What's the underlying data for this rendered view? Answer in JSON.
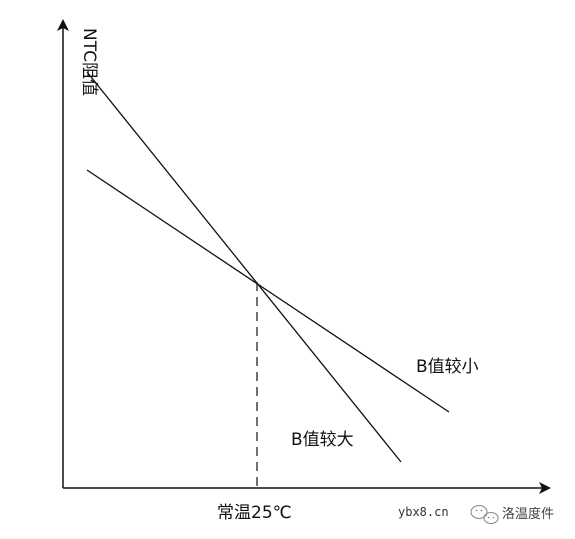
{
  "diagram": {
    "y_axis_label": "NTC阻值",
    "x_tick_label": "常温25℃",
    "curve_b_small_label": "B值较小",
    "curve_b_large_label": "B值较大"
  },
  "watermark": {
    "site": "ybx8.cn",
    "brand": "洛温度件",
    "icon": "wechat-official-account-icon"
  },
  "colors": {
    "line": "#111111",
    "background": "#ffffff"
  }
}
